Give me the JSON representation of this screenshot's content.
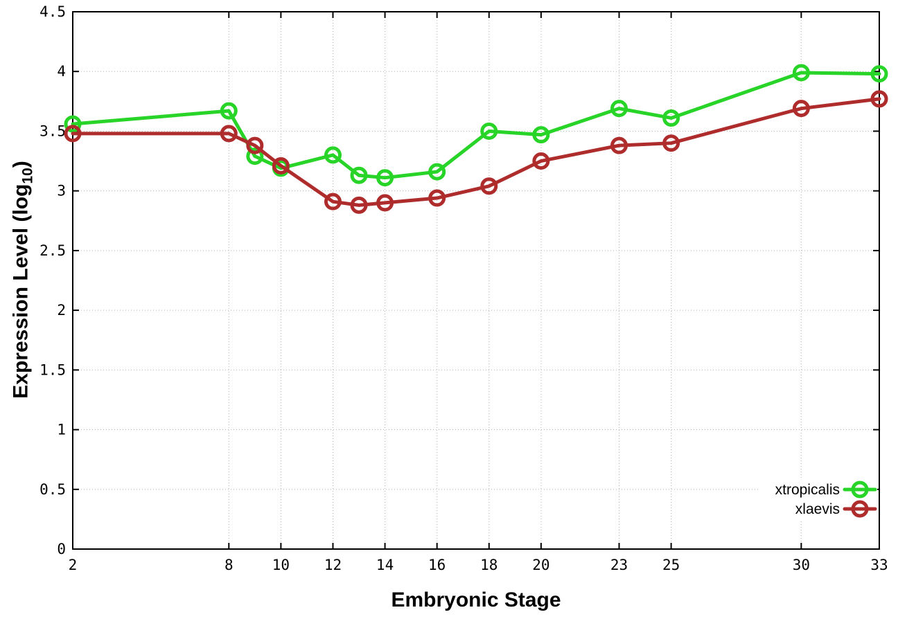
{
  "chart_data": {
    "type": "line",
    "title": "",
    "xlabel": "Embryonic Stage",
    "ylabel": "Expression Level (log10)",
    "ylabel_parts": {
      "pre": "Expression Level (log",
      "sub": "10",
      "post": ")"
    },
    "x": [
      2,
      8,
      9,
      10,
      12,
      13,
      14,
      16,
      18,
      20,
      23,
      25,
      30,
      33
    ],
    "xticks": [
      2,
      8,
      10,
      12,
      14,
      16,
      18,
      20,
      23,
      25,
      30,
      33
    ],
    "yticks": [
      0,
      0.5,
      1,
      1.5,
      2,
      2.5,
      3,
      3.5,
      4,
      4.5
    ],
    "xlim": [
      2,
      33
    ],
    "ylim": [
      0,
      4.5
    ],
    "grid": true,
    "legend_position": "bottom-right",
    "series": [
      {
        "name": "xtropicalis",
        "color": "#27d427",
        "values": [
          3.56,
          3.67,
          3.29,
          3.19,
          3.3,
          3.13,
          3.11,
          3.16,
          3.5,
          3.47,
          3.69,
          3.61,
          3.99,
          3.98
        ]
      },
      {
        "name": "xlaevis",
        "color": "#ae2c2c",
        "values": [
          3.48,
          3.48,
          3.38,
          3.21,
          2.91,
          2.88,
          2.9,
          2.94,
          3.04,
          3.25,
          3.38,
          3.4,
          3.69,
          3.77
        ]
      }
    ],
    "colors": {
      "axis": "#000000",
      "grid": "#b4b4b4",
      "background": "#ffffff"
    }
  }
}
